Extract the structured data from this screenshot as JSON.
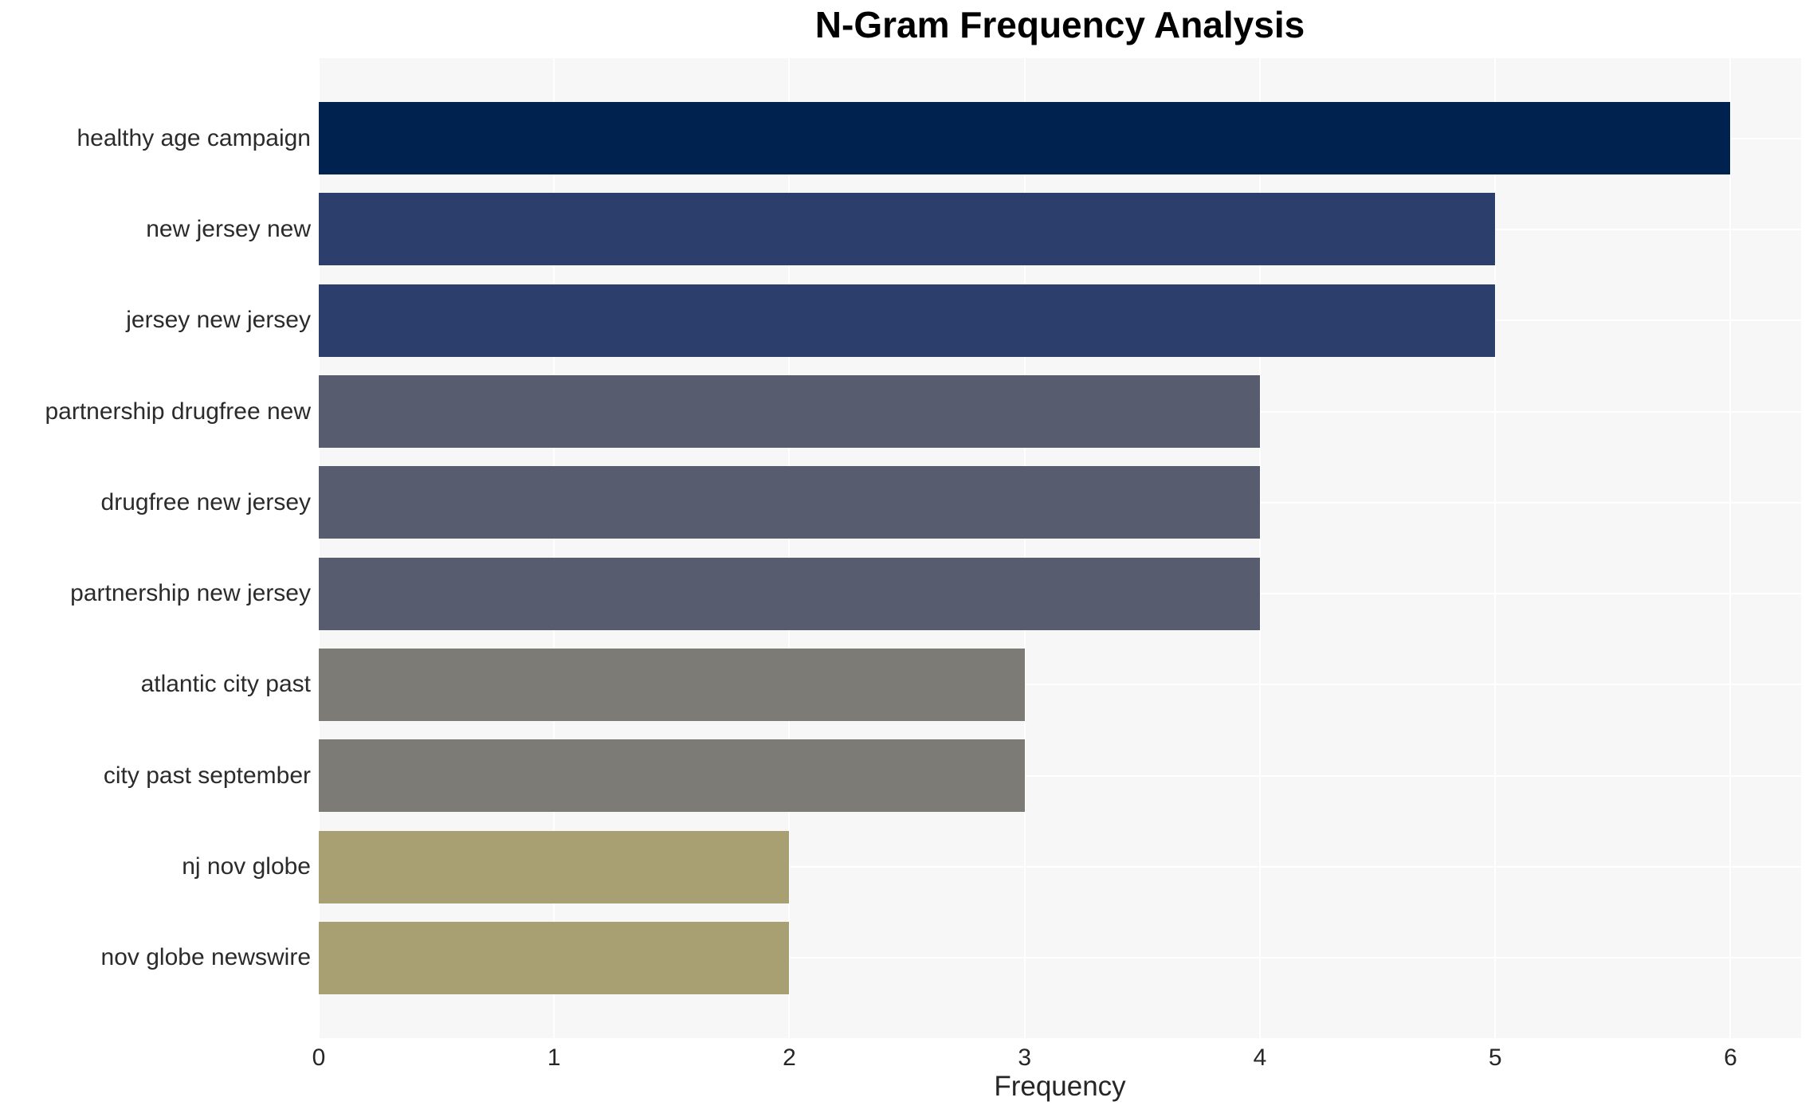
{
  "chart_data": {
    "type": "bar",
    "orientation": "horizontal",
    "title": "N-Gram Frequency Analysis",
    "xlabel": "Frequency",
    "categories": [
      "healthy age campaign",
      "new jersey new",
      "jersey new jersey",
      "partnership drugfree new",
      "drugfree new jersey",
      "partnership new jersey",
      "atlantic city past",
      "city past september",
      "nj nov globe",
      "nov globe newswire"
    ],
    "values": [
      6,
      5,
      5,
      4,
      4,
      4,
      3,
      3,
      2,
      2
    ],
    "xticks": [
      "0",
      "1",
      "2",
      "3",
      "4",
      "5",
      "6"
    ],
    "xlim": [
      0,
      6.3
    ],
    "grid": true,
    "legend": "none",
    "colors": {
      "plot_background": "#f7f7f7",
      "figure_background": "#ffffff",
      "gridline": "#ffffff",
      "tick_text": "#262626",
      "category_text": "#2b2b2b",
      "title_text": "#000000",
      "bar_color_by_value": {
        "6": "#00224e",
        "5": "#2c3f6c",
        "4": "#575d6e",
        "3": "#7c7b76",
        "2": "#a89f72"
      }
    }
  }
}
